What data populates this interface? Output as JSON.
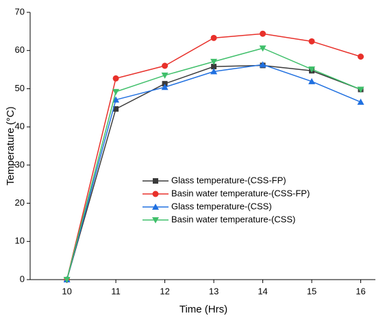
{
  "chart_data": {
    "type": "line",
    "xlabel": "Time (Hrs)",
    "ylabel": "Temperature (°C)",
    "x": [
      10,
      11,
      12,
      13,
      14,
      15,
      16
    ],
    "series": [
      {
        "name": "Glass temperature-(CSS-FP)",
        "color": "#3a3a3a",
        "marker": "square",
        "values": [
          0,
          44.7,
          51.3,
          55.8,
          56.1,
          54.7,
          49.8
        ]
      },
      {
        "name": "Basin water temperature-(CSS-FP)",
        "color": "#e8302a",
        "marker": "circle",
        "values": [
          0,
          52.7,
          56,
          63.3,
          64.4,
          62.4,
          58.4
        ]
      },
      {
        "name": "Glass temperature-(CSS)",
        "color": "#2070e0",
        "marker": "triangle-up",
        "values": [
          0,
          47.1,
          50.4,
          54.5,
          56.3,
          51.9,
          46.5
        ]
      },
      {
        "name": "Basin water temperature-(CSS)",
        "color": "#3fbf6a",
        "marker": "triangle-down",
        "values": [
          0,
          49.2,
          53.5,
          57.1,
          60.6,
          55.1,
          49.8
        ]
      }
    ],
    "xlim": [
      9.25,
      16.3
    ],
    "xticks": [
      10,
      11,
      12,
      13,
      14,
      15,
      16
    ],
    "ylim": [
      0,
      70
    ],
    "yticks": [
      0,
      10,
      20,
      30,
      40,
      50,
      60,
      70
    ]
  }
}
